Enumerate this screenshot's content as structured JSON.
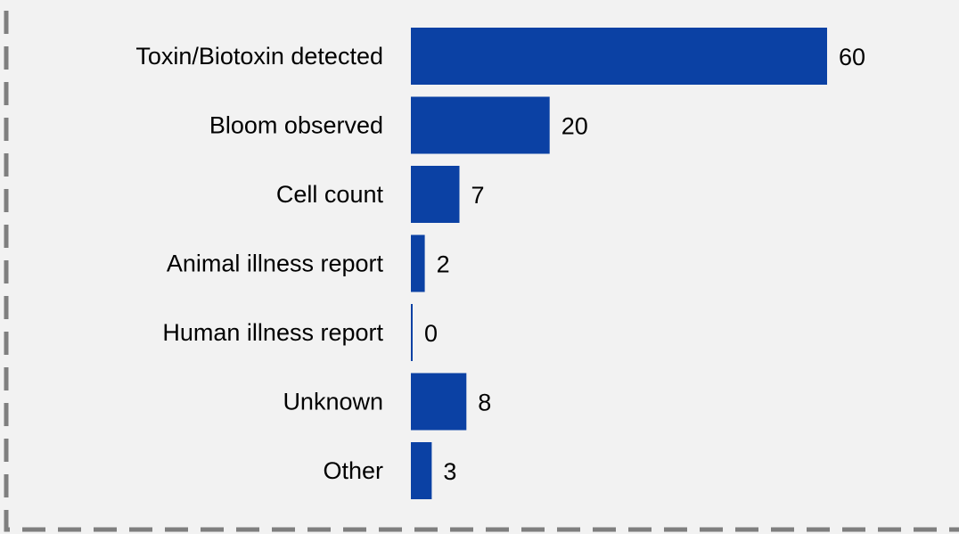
{
  "chart_data": {
    "type": "bar",
    "orientation": "horizontal",
    "title": "",
    "xlabel": "",
    "ylabel": "",
    "categories": [
      "Toxin/Biotoxin detected",
      "Bloom observed",
      "Cell count",
      "Animal illness report",
      "Human illness report",
      "Unknown",
      "Other"
    ],
    "values": [
      60,
      20,
      7,
      2,
      0,
      8,
      3
    ],
    "value_labels": [
      "60",
      "20",
      "7",
      "2",
      "0",
      "8",
      "3"
    ],
    "xlim": [
      0,
      60
    ],
    "grid": false,
    "legend": "none",
    "bar_color": "#0b41a4",
    "background_color": "#f2f2f2",
    "border_color": "#7f7f7f",
    "border_style": "dashed"
  }
}
